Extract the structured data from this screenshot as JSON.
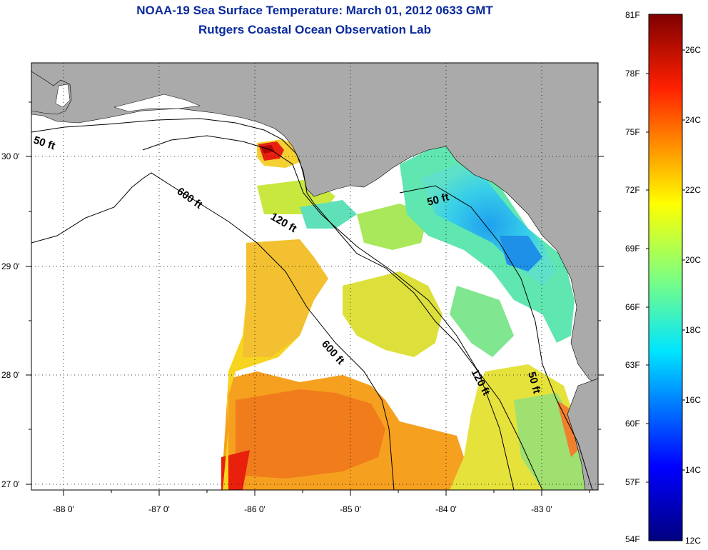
{
  "title": "NOAA-19 Sea Surface Temperature:  March 01, 2012 0633 GMT",
  "subtitle": "Rutgers Coastal Ocean Observation Lab",
  "lat_labels": [
    "30 0'",
    "29 0'",
    "28 0'",
    "27 0'"
  ],
  "lon_labels": [
    "-88 0'",
    "-87 0'",
    "-86 0'",
    "-85 0'",
    "-84 0'",
    "-83 0'"
  ],
  "contour_labels": [
    "50 ft",
    "600 ft",
    "120 ft",
    "50 ft",
    "600 ft",
    "120 ft",
    "50 ft"
  ],
  "colorbar": {
    "fahrenheit": [
      "81F",
      "78F",
      "75F",
      "72F",
      "69F",
      "66F",
      "63F",
      "60F",
      "57F",
      "54F"
    ],
    "celsius": [
      "26C",
      "24C",
      "22C",
      "20C",
      "18C",
      "16C",
      "14C",
      "12C"
    ]
  },
  "colors": {
    "land": "#aaaaaa",
    "water_nodata": "#ffffff",
    "title": "#0a2a9c"
  }
}
